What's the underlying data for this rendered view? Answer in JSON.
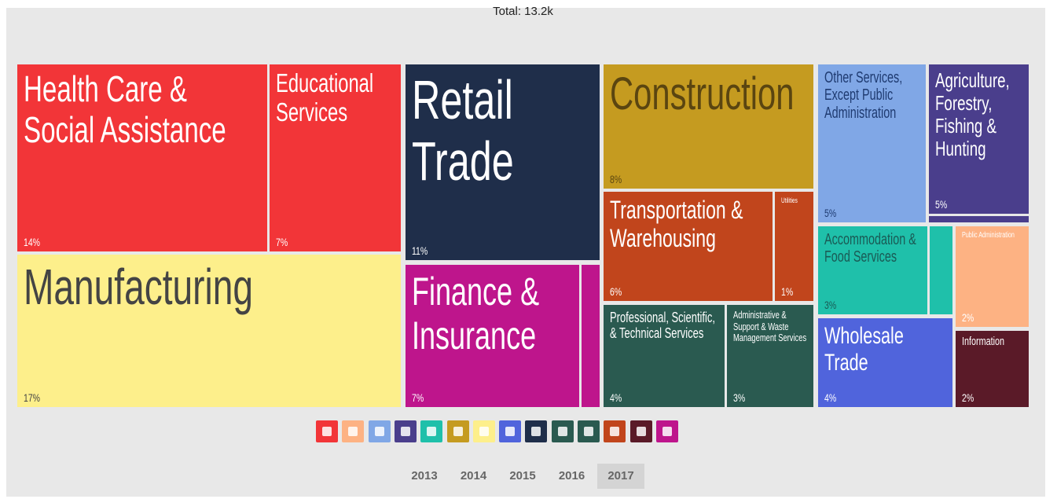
{
  "chart_data": {
    "type": "treemap",
    "title": "Total: 13.2k",
    "categories": [
      "Health Care & Social Assistance",
      "Educational Services",
      "Manufacturing",
      "Retail Trade",
      "Finance & Insurance",
      null,
      "Construction",
      "Transportation & Warehousing",
      "Utilities",
      "Professional, Scientific, & Technical Services",
      "Administrative & Support & Waste Management Services",
      "Other Services, Except Public Administration",
      "Agriculture, Forestry, Fishing & Hunting",
      null,
      "Accommodation & Food Services",
      null,
      "Public Administration",
      "Wholesale Trade",
      "Information"
    ],
    "values": [
      14,
      7,
      17,
      11,
      7,
      1,
      8,
      6,
      1,
      4,
      3,
      5,
      5,
      0.5,
      3,
      1,
      2,
      4,
      2
    ],
    "value_labels": [
      "14%",
      "7%",
      "17%",
      "11%",
      "7%",
      null,
      "8%",
      "6%",
      "1%",
      "4%",
      "3%",
      "5%",
      "5%",
      null,
      "3%",
      null,
      "2%",
      "4%",
      "2%"
    ],
    "colors": [
      "#f23538",
      "#f23538",
      "#fdef8b",
      "#1f2e4a",
      "#be158c",
      "#be158c",
      "#c59b20",
      "#c1451c",
      "#c1451c",
      "#2a5a50",
      "#2a5a50",
      "#80a7e6",
      "#4a3e8c",
      "#4a3e8c",
      "#1fc0aa",
      "#1fc0aa",
      "#fdb283",
      "#5064dc",
      "#5a1a28"
    ],
    "years": [
      "2013",
      "2014",
      "2015",
      "2016",
      "2017"
    ],
    "selected_year": "2017"
  }
}
